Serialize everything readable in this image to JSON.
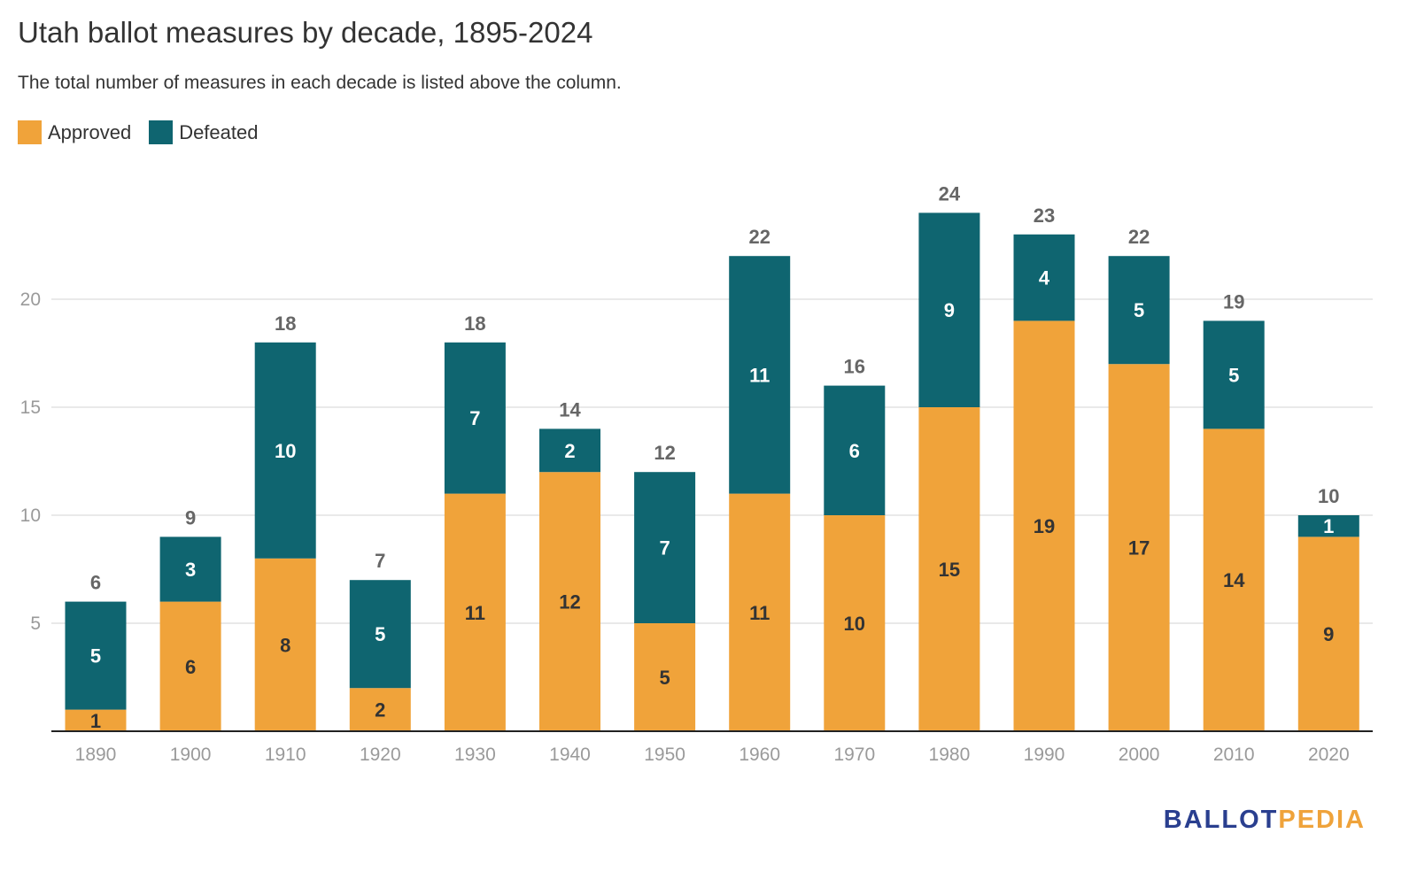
{
  "title": "Utah ballot measures by decade, 1895-2024",
  "subtitle": "The total number of measures in each decade is listed above the column.",
  "legend": [
    {
      "label": "Approved",
      "color": "#f0a33a"
    },
    {
      "label": "Defeated",
      "color": "#0f6570"
    }
  ],
  "brand": {
    "part1": "BALLOT",
    "part2": "PEDIA"
  },
  "chart_data": {
    "type": "bar",
    "stacked": true,
    "categories": [
      "1890",
      "1900",
      "1910",
      "1920",
      "1930",
      "1940",
      "1950",
      "1960",
      "1970",
      "1980",
      "1990",
      "2000",
      "2010",
      "2020"
    ],
    "series": [
      {
        "name": "Approved",
        "color": "#f0a33a",
        "values": [
          1,
          6,
          8,
          2,
          11,
          12,
          5,
          11,
          10,
          15,
          19,
          17,
          14,
          9
        ]
      },
      {
        "name": "Defeated",
        "color": "#0f6570",
        "values": [
          5,
          3,
          10,
          5,
          7,
          2,
          7,
          11,
          6,
          9,
          4,
          5,
          5,
          1
        ]
      }
    ],
    "totals": [
      6,
      9,
      18,
      7,
      18,
      14,
      12,
      22,
      16,
      24,
      23,
      22,
      19,
      10
    ],
    "yticks": [
      5,
      10,
      15,
      20
    ],
    "ylim": [
      0,
      24
    ],
    "grid": true,
    "legend_position": "top-left"
  }
}
